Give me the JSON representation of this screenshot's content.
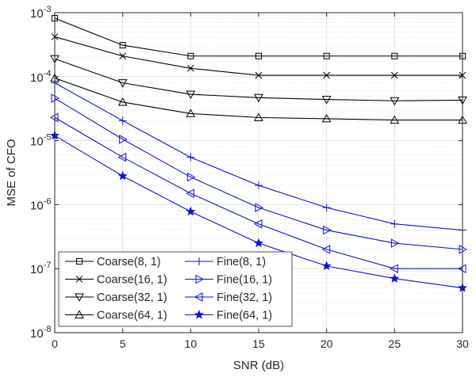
{
  "chart_data": {
    "type": "line",
    "title": "",
    "xlabel": "SNR (dB)",
    "ylabel": "MSE of CFO",
    "yscale": "log",
    "xlim": [
      0,
      30
    ],
    "ylim": [
      1e-08,
      0.001
    ],
    "x": [
      0,
      5,
      10,
      15,
      20,
      25,
      30
    ],
    "x_ticks": [
      "0",
      "5",
      "10",
      "15",
      "20",
      "25",
      "30"
    ],
    "y_ticks": [
      {
        "base": "10",
        "exp": "-8",
        "value": 1e-08
      },
      {
        "base": "10",
        "exp": "-7",
        "value": 1e-07
      },
      {
        "base": "10",
        "exp": "-6",
        "value": 1e-06
      },
      {
        "base": "10",
        "exp": "-5",
        "value": 1e-05
      },
      {
        "base": "10",
        "exp": "-4",
        "value": 0.0001
      },
      {
        "base": "10",
        "exp": "-3",
        "value": 0.001
      }
    ],
    "grid": true,
    "legend_position": "bottom-left",
    "legend_columns": 2,
    "colors": {
      "coarse": "#000000",
      "fine": "#0a14d8",
      "grid": "#dcdcdc",
      "axis": "#262626"
    },
    "series": [
      {
        "name": "Coarse(8, 1)",
        "group": "coarse",
        "marker": "square",
        "values": [
          0.00082,
          0.00031,
          0.00021,
          0.00021,
          0.00021,
          0.00021,
          0.00021
        ]
      },
      {
        "name": "Coarse(16, 1)",
        "group": "coarse",
        "marker": "x",
        "values": [
          0.00042,
          0.00021,
          0.000135,
          0.000105,
          0.000105,
          0.000105,
          0.000105
        ]
      },
      {
        "name": "Coarse(32, 1)",
        "group": "coarse",
        "marker": "triangle-down",
        "values": [
          0.00019,
          8e-05,
          5.3e-05,
          4.7e-05,
          4.4e-05,
          4.2e-05,
          4.3e-05
        ]
      },
      {
        "name": "Coarse(64, 1)",
        "group": "coarse",
        "marker": "triangle-up",
        "values": [
          9.5e-05,
          4e-05,
          2.65e-05,
          2.3e-05,
          2.2e-05,
          2.1e-05,
          2.1e-05
        ]
      },
      {
        "name": "Fine(8, 1)",
        "group": "fine",
        "marker": "plus",
        "values": [
          8e-05,
          2.05e-05,
          5.5e-06,
          2e-06,
          9e-07,
          5e-07,
          4e-07
        ]
      },
      {
        "name": "Fine(16, 1)",
        "group": "fine",
        "marker": "triangle-right",
        "values": [
          4.6e-05,
          1.05e-05,
          2.7e-06,
          9e-07,
          4e-07,
          2.5e-07,
          2e-07
        ]
      },
      {
        "name": "Fine(32, 1)",
        "group": "fine",
        "marker": "triangle-left",
        "values": [
          2.3e-05,
          5.5e-06,
          1.5e-06,
          5e-07,
          2e-07,
          1e-07,
          1e-07
        ]
      },
      {
        "name": "Fine(64, 1)",
        "group": "fine",
        "marker": "star",
        "values": [
          1.2e-05,
          2.8e-06,
          7.8e-07,
          2.5e-07,
          1.1e-07,
          7e-08,
          5e-08
        ]
      }
    ]
  }
}
